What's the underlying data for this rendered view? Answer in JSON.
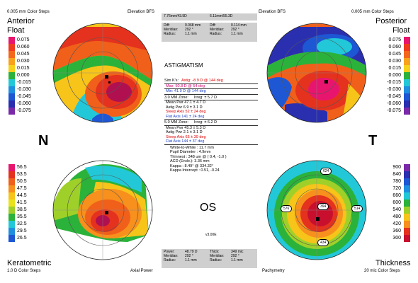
{
  "header": {
    "left_steps": "0.005 mm Color Steps",
    "left_bfs": "Elevation BFS",
    "right_bfs": "Elevation BFS",
    "right_steps": "0.005 mm Color Steps",
    "bfs_left_value": "7.76mm/43.5D",
    "bfs_right_value": "6.11mm/55.3D"
  },
  "labels": {
    "anterior": "Anterior",
    "float_left": "Float",
    "posterior": "Posterior",
    "float_right": "Float",
    "nasal": "N",
    "temporal": "T",
    "keratometric": "Keratometric",
    "keratometric_steps": "1.0 D Color Steps",
    "axial_power": "Axial Power",
    "pachymetry": "Pachymetry",
    "thickness": "Thickness",
    "thickness_steps": "20 mic Color Steps",
    "eye": "OS",
    "version": "v3.00E"
  },
  "elev_scale": [
    "0.075",
    "0.060",
    "0.045",
    "0.030",
    "0.015",
    "0.000",
    "-0.015",
    "-0.030",
    "-0.045",
    "-0.060",
    "-0.075"
  ],
  "elev_colors": [
    "#e8156e",
    "#f03a1e",
    "#f4661a",
    "#f8a21c",
    "#f7d21a",
    "#2bb23a",
    "#22c8d8",
    "#1f8fe0",
    "#1d57d4",
    "#2a2fb0",
    "#7a2aa8"
  ],
  "kerat_scale": [
    "56.5",
    "53.5",
    "50.5",
    "47.5",
    "44.5",
    "41.5",
    "38.5",
    "35.5",
    "32.5",
    "29.5",
    "26.5"
  ],
  "kerat_colors": [
    "#e8156e",
    "#e4321e",
    "#f0601a",
    "#f7901c",
    "#f7c41a",
    "#e8e31c",
    "#9fd02a",
    "#2bb23a",
    "#22c8d8",
    "#1f8fe0",
    "#1d57d4"
  ],
  "thick_scale": [
    "900",
    "840",
    "780",
    "720",
    "660",
    "600",
    "540",
    "480",
    "420",
    "360",
    "300"
  ],
  "thick_colors": [
    "#7a2aa8",
    "#2a2fb0",
    "#1d57d4",
    "#1f8fe0",
    "#22c8d8",
    "#2bb23a",
    "#9fd02a",
    "#f7c41a",
    "#f7901c",
    "#e4321e",
    "#c8102e"
  ],
  "diff_left": {
    "diff_label": "Diff:",
    "diff": "0.068 mm",
    "meridian_label": "Meridian:",
    "meridian": "292 °",
    "radius_label": "Radius:",
    "radius": "1.1 mm"
  },
  "diff_right": {
    "diff_label": "Diff:",
    "diff": "0.114 mm",
    "meridian_label": "Meridian:",
    "meridian": "292 °",
    "radius_label": "Radius:",
    "radius": "1.1 mm"
  },
  "power_box": {
    "power_label": "Power:",
    "power": "48.79 D",
    "meridian_label": "Meridian:",
    "meridian": "292 °",
    "radius_label": "Radius:",
    "radius": "1.1 mm"
  },
  "thick_box": {
    "thick_label": "Thick:",
    "thick": "349 mic",
    "meridian_label": "Meridian:",
    "meridian": "292 °",
    "radius_label": "Radius:",
    "radius": "1.1 mm"
  },
  "astig": {
    "title": "ASTIGMATISM",
    "simk_label": "Sim K's:",
    "simk_astig": "Astig: -8.9 D @ 144 deg",
    "simk_max": "Max:     50.8 D @ 54 deg",
    "simk_min": "Min:     41.9 D @ 144 deg",
    "z3_label": "3.0 MM Zone:",
    "z3_irreg": "Irreg:    ± 5.7 D",
    "z3_mean": "Mean Pwr      47.1    ± 4.7 D",
    "z3_astig": "Astig Pwr      6.9     ± 3.1 D",
    "z3_steep": "Steep Axis     52     ± 24 deg",
    "z3_flat": "Flat Axis       141    ± 24 deg",
    "z5_label": "5.0 MM Zone:",
    "z5_irreg": "Irreg:    ± 6.2 D",
    "z5_mean": "Mean Pwr      45.3    ± 5.3 D",
    "z5_astig": "Astig Pwr      2.1     ± 3.1 D",
    "z5_steep": "Steep Axis     65     ± 39 deg",
    "z5_flat": "Flat Axis       144    ± 37 deg",
    "wtw": "White-to-White : 11.7 mm",
    "pupil": "Pupil Diameter : 4.9mm",
    "thinnest": "Thinnest : 348 um @ ( 0.4, -1.0 )",
    "acd": "ACD (Endo.): 3.36 mm",
    "kappa": "Kappa : 8.49° @ 334.32°",
    "kappa_int": "Kappa Intercept : 0.51, -0.24"
  },
  "pachy_values": {
    "center": "394",
    "top": "624",
    "left": "576",
    "right": "514",
    "bottom": "434"
  }
}
